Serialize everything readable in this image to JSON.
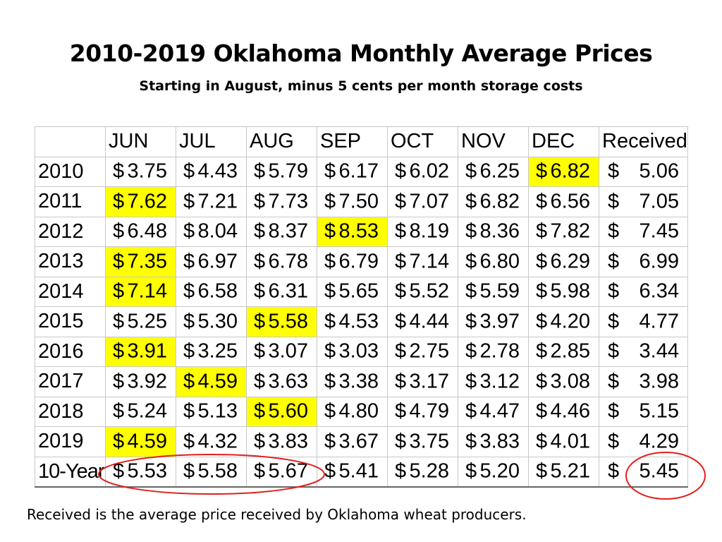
{
  "title": "2010-2019 Oklahoma Monthly Average Prices",
  "subtitle": "Starting in August, minus 5 cents per month storage costs",
  "table": {
    "headers": [
      "",
      "JUN",
      "JUL",
      "AUG",
      "SEP",
      "OCT",
      "NOV",
      "DEC",
      "Received"
    ],
    "currency": "$",
    "rows": [
      {
        "year": "2010",
        "values": [
          "3.75",
          "4.43",
          "5.79",
          "6.17",
          "6.02",
          "6.25",
          "6.82",
          "5.06"
        ],
        "highlight": 6
      },
      {
        "year": "2011",
        "values": [
          "7.62",
          "7.21",
          "7.73",
          "7.50",
          "7.07",
          "6.82",
          "6.56",
          "7.05"
        ],
        "highlight": 0
      },
      {
        "year": "2012",
        "values": [
          "6.48",
          "8.04",
          "8.37",
          "8.53",
          "8.19",
          "8.36",
          "7.82",
          "7.45"
        ],
        "highlight": 3
      },
      {
        "year": "2013",
        "values": [
          "7.35",
          "6.97",
          "6.78",
          "6.79",
          "7.14",
          "6.80",
          "6.29",
          "6.99"
        ],
        "highlight": 0
      },
      {
        "year": "2014",
        "values": [
          "7.14",
          "6.58",
          "6.31",
          "5.65",
          "5.52",
          "5.59",
          "5.98",
          "6.34"
        ],
        "highlight": 0
      },
      {
        "year": "2015",
        "values": [
          "5.25",
          "5.30",
          "5.58",
          "4.53",
          "4.44",
          "3.97",
          "4.20",
          "4.77"
        ],
        "highlight": 2
      },
      {
        "year": "2016",
        "values": [
          "3.91",
          "3.25",
          "3.07",
          "3.03",
          "2.75",
          "2.78",
          "2.85",
          "3.44"
        ],
        "highlight": 0
      },
      {
        "year": "2017",
        "values": [
          "3.92",
          "4.59",
          "3.63",
          "3.38",
          "3.17",
          "3.12",
          "3.08",
          "3.98"
        ],
        "highlight": 1
      },
      {
        "year": "2018",
        "values": [
          "5.24",
          "5.13",
          "5.60",
          "4.80",
          "4.79",
          "4.47",
          "4.46",
          "5.15"
        ],
        "highlight": 2
      },
      {
        "year": "2019",
        "values": [
          "4.59",
          "4.32",
          "3.83",
          "3.67",
          "3.75",
          "3.83",
          "4.01",
          "4.29"
        ],
        "highlight": 0
      },
      {
        "year": "10-Year",
        "values": [
          "5.53",
          "5.58",
          "5.67",
          "5.41",
          "5.28",
          "5.20",
          "5.21",
          "5.45"
        ],
        "highlight": -1
      }
    ],
    "highlight_color": "#ffff00",
    "annotation_color": "#e0201c"
  },
  "footnote": "Received is the average price received by Oklahoma wheat producers."
}
